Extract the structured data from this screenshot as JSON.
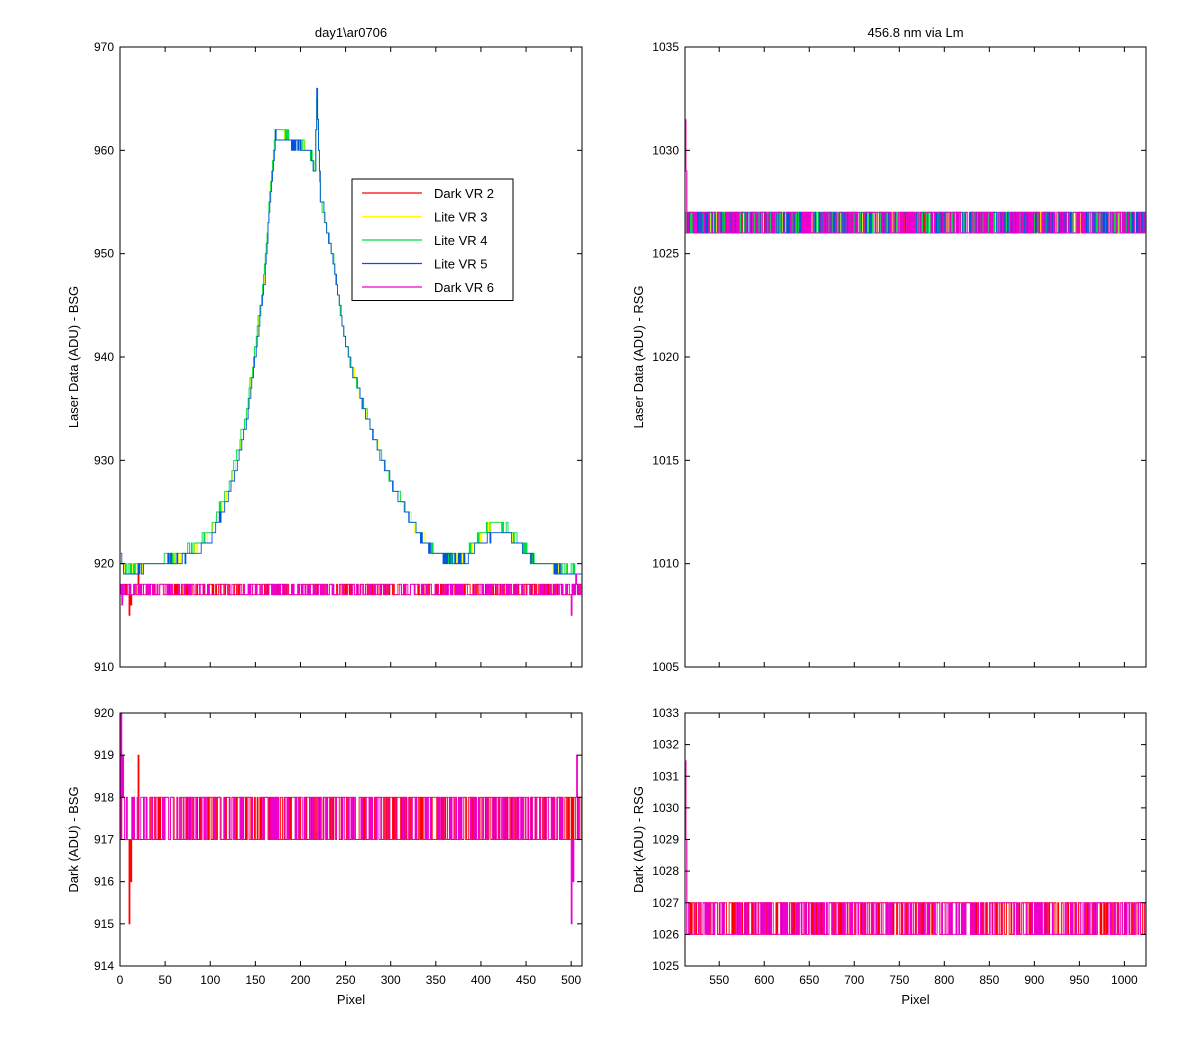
{
  "chart_data": [
    {
      "panel": "top-left",
      "type": "line",
      "title": "day1\\ar0706",
      "xlabel": "",
      "ylabel": "Laser Data (ADU) - BSG",
      "xlim": [
        0,
        512
      ],
      "ylim": [
        910,
        970
      ],
      "xticks": [
        0,
        50,
        100,
        150,
        200,
        250,
        300,
        350,
        400,
        450,
        500
      ],
      "show_xtick_labels": false,
      "yticks": [
        910,
        920,
        930,
        940,
        950,
        960,
        970
      ],
      "legend": {
        "position": "inside-upper-middle",
        "entries": [
          "Dark VR 2",
          "Lite VR 3",
          "Lite VR 4",
          "Lite VR 5",
          "Dark VR 6"
        ]
      },
      "series": [
        {
          "name": "Dark VR 2",
          "color": "#ff0000",
          "pattern": "noise",
          "lo": 917,
          "hi": 918,
          "spikes": [
            [
              10,
              915
            ],
            [
              12,
              916
            ],
            [
              20,
              919
            ]
          ]
        },
        {
          "name": "Lite VR 3",
          "color": "#ffff00",
          "pattern": "profile",
          "x": [
            0,
            5,
            40,
            80,
            100,
            120,
            140,
            160,
            168,
            172,
            176,
            210,
            216,
            218,
            222,
            235,
            250,
            270,
            300,
            330,
            350,
            380,
            400,
            415,
            430,
            460,
            490,
            512
          ],
          "y": [
            920,
            919.5,
            920,
            921,
            923,
            927,
            934,
            948,
            958,
            962,
            962,
            960,
            958,
            965,
            955,
            950,
            941,
            935,
            928,
            923,
            921,
            920.5,
            922.5,
            924,
            923,
            920,
            919.5,
            919
          ]
        },
        {
          "name": "Lite VR 4",
          "color": "#00dd44",
          "pattern": "profile",
          "x": [
            0,
            5,
            40,
            80,
            100,
            120,
            140,
            160,
            168,
            172,
            176,
            210,
            216,
            218,
            222,
            235,
            250,
            270,
            300,
            330,
            350,
            380,
            400,
            415,
            430,
            460,
            490,
            512
          ],
          "y": [
            920.5,
            919.3,
            920,
            921.5,
            923.3,
            927.3,
            934.5,
            948.5,
            958.5,
            962,
            962,
            960,
            958,
            965,
            955,
            950,
            941,
            935,
            928,
            923,
            921,
            920.5,
            923,
            924,
            923.3,
            920.3,
            919.7,
            919
          ]
        },
        {
          "name": "Lite VR 5",
          "color": "#0055dd",
          "pattern": "profile",
          "x": [
            0,
            5,
            40,
            80,
            100,
            120,
            140,
            160,
            168,
            172,
            176,
            210,
            216,
            218,
            222,
            235,
            250,
            270,
            300,
            330,
            350,
            380,
            400,
            415,
            430,
            460,
            490,
            512
          ],
          "y": [
            921,
            919,
            920,
            920.8,
            922.5,
            926.5,
            933.5,
            947.5,
            957.5,
            961.5,
            961,
            960,
            958,
            966,
            955.5,
            950,
            941,
            935,
            927.8,
            922.8,
            920.8,
            920.2,
            922,
            923,
            923,
            920,
            919.2,
            918.5
          ]
        },
        {
          "name": "Dark VR 6",
          "color": "#ee00cc",
          "pattern": "noise",
          "lo": 917,
          "hi": 918,
          "spikes": [
            [
              2,
              916
            ],
            [
              500,
              915
            ],
            [
              505,
              919
            ]
          ]
        }
      ]
    },
    {
      "panel": "top-right",
      "type": "line",
      "title": "456.8 nm via Lm",
      "xlabel": "",
      "ylabel": "Laser Data (ADU) - RSG",
      "xlim": [
        512,
        1024
      ],
      "ylim": [
        1005,
        1035
      ],
      "xticks": [
        550,
        600,
        650,
        700,
        750,
        800,
        850,
        900,
        950,
        1000
      ],
      "show_xtick_labels": false,
      "yticks": [
        1005,
        1010,
        1015,
        1020,
        1025,
        1030,
        1035
      ],
      "series": [
        {
          "name": "Dark VR 2",
          "color": "#ff0000",
          "pattern": "noise",
          "lo": 1026,
          "hi": 1027,
          "start": [
            1031.5,
            1029
          ]
        },
        {
          "name": "Lite VR 3",
          "color": "#ffff00",
          "pattern": "noise",
          "lo": 1026,
          "hi": 1027
        },
        {
          "name": "Lite VR 4",
          "color": "#00dd44",
          "pattern": "noise",
          "lo": 1026,
          "hi": 1027
        },
        {
          "name": "Lite VR 5",
          "color": "#0055dd",
          "pattern": "noise",
          "lo": 1026,
          "hi": 1027
        },
        {
          "name": "Dark VR 6",
          "color": "#ee00cc",
          "pattern": "noise",
          "lo": 1026,
          "hi": 1027,
          "start": [
            1031.5,
            1029
          ]
        }
      ]
    },
    {
      "panel": "bottom-left",
      "type": "line",
      "title": "",
      "xlabel": "Pixel",
      "ylabel": "Dark (ADU) - BSG",
      "xlim": [
        0,
        512
      ],
      "ylim": [
        914,
        920
      ],
      "xticks": [
        0,
        50,
        100,
        150,
        200,
        250,
        300,
        350,
        400,
        450,
        500
      ],
      "show_xtick_labels": true,
      "yticks": [
        914,
        915,
        916,
        917,
        918,
        919,
        920
      ],
      "series": [
        {
          "name": "Dark VR 2",
          "color": "#ff0000",
          "pattern": "noise",
          "lo": 917,
          "hi": 918,
          "spikes": [
            [
              10,
              915
            ],
            [
              12,
              916
            ],
            [
              20,
              919
            ]
          ]
        },
        {
          "name": "Dark VR 6",
          "color": "#ee00cc",
          "pattern": "noise",
          "lo": 917,
          "hi": 918,
          "spikes": [
            [
              1,
              920
            ],
            [
              3,
              919
            ],
            [
              500,
              915
            ],
            [
              502,
              916
            ],
            [
              506,
              919
            ]
          ]
        }
      ]
    },
    {
      "panel": "bottom-right",
      "type": "line",
      "title": "",
      "xlabel": "Pixel",
      "ylabel": "Dark (ADU) - RSG",
      "xlim": [
        512,
        1024
      ],
      "ylim": [
        1025,
        1033
      ],
      "xticks": [
        550,
        600,
        650,
        700,
        750,
        800,
        850,
        900,
        950,
        1000
      ],
      "show_xtick_labels": true,
      "yticks": [
        1025,
        1026,
        1027,
        1028,
        1029,
        1030,
        1031,
        1032,
        1033
      ],
      "series": [
        {
          "name": "Dark VR 2",
          "color": "#ff0000",
          "pattern": "noise",
          "lo": 1026,
          "hi": 1027,
          "start": [
            1031.5,
            1029
          ]
        },
        {
          "name": "Dark VR 6",
          "color": "#ee00cc",
          "pattern": "noise",
          "lo": 1026,
          "hi": 1027,
          "start": [
            1031.5,
            1029
          ]
        }
      ]
    }
  ]
}
